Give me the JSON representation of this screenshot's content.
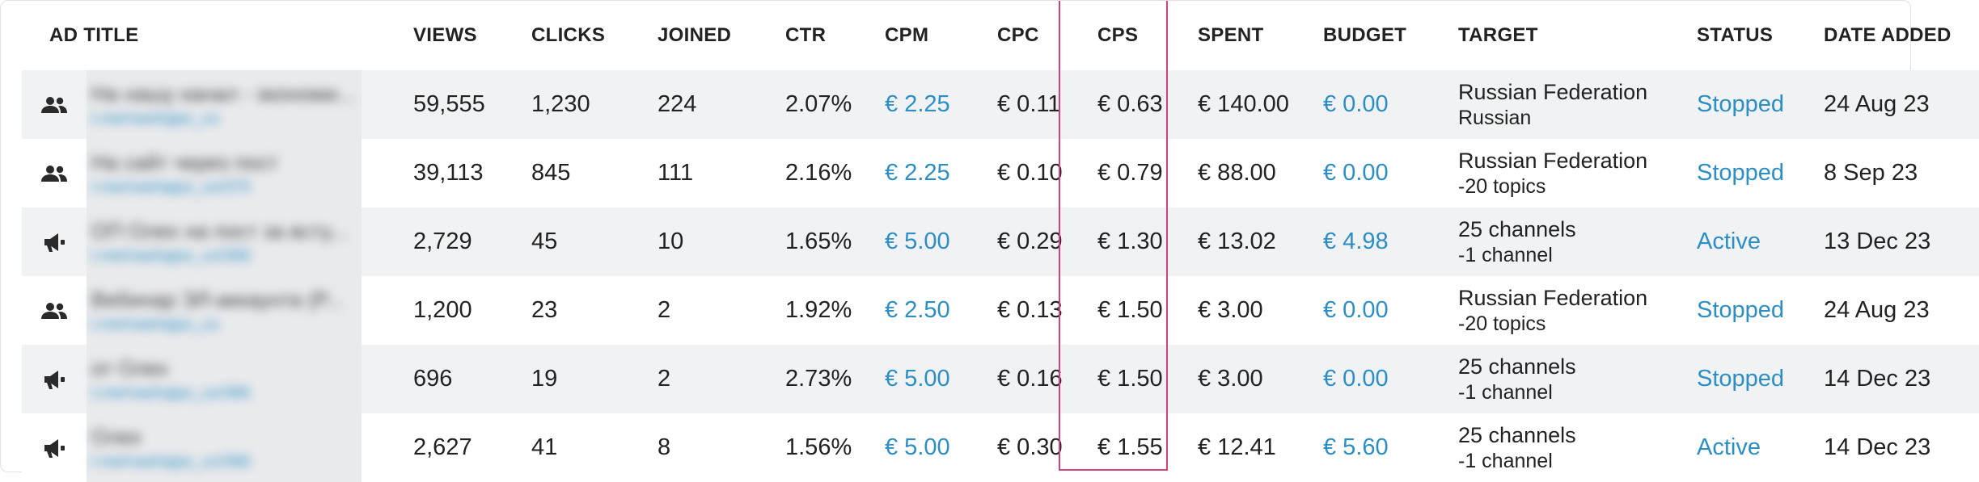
{
  "columns": {
    "ad_title": "AD TITLE",
    "views": "VIEWS",
    "clicks": "CLICKS",
    "joined": "JOINED",
    "ctr": "CTR",
    "cpm": "CPM",
    "cpc": "CPC",
    "cps": "CPS",
    "spent": "SPENT",
    "budget": "BUDGET",
    "target": "TARGET",
    "status": "STATUS",
    "date_added": "DATE ADDED"
  },
  "colors": {
    "link": "#2b8fc6",
    "highlight": "#d6407c",
    "row_alt": "#f1f2f4"
  },
  "rows": [
    {
      "icon": "users-icon",
      "title": "На нашу канал - экономи...",
      "subtitle": "t.me/nashqipo_co",
      "views": "59,555",
      "clicks": "1,230",
      "joined": "224",
      "ctr": "2.07%",
      "cpm": "€ 2.25",
      "cpc": "€ 0.11",
      "cps": "€ 0.63",
      "spent": "€ 140.00",
      "budget": "€ 0.00",
      "target1": "Russian Federation",
      "target2": "Russian",
      "status": "Stopped",
      "date": "24 Aug 23"
    },
    {
      "icon": "users-icon",
      "title": "На сайт через пост",
      "subtitle": "t.me/nashqipo_co/375",
      "views": "39,113",
      "clicks": "845",
      "joined": "111",
      "ctr": "2.16%",
      "cpm": "€ 2.25",
      "cpc": "€ 0.10",
      "cps": "€ 0.79",
      "spent": "€ 88.00",
      "budget": "€ 0.00",
      "target1": "Russian Federation",
      "target2": "-20 topics",
      "status": "Stopped",
      "date": "8 Sep 23"
    },
    {
      "icon": "megaphone-icon",
      "title": "ОП Олех на пост за всту...",
      "subtitle": "t.me/nashqipo_co/386",
      "views": "2,729",
      "clicks": "45",
      "joined": "10",
      "ctr": "1.65%",
      "cpm": "€ 5.00",
      "cpc": "€ 0.29",
      "cps": "€ 1.30",
      "spent": "€ 13.02",
      "budget": "€ 4.98",
      "target1": "25 channels",
      "target2": "-1 channel",
      "status": "Active",
      "date": "13 Dec 23"
    },
    {
      "icon": "users-icon",
      "title": "Вебинар ЭЛ-аккаунта (Р...",
      "subtitle": "t.me/nashqipo_co",
      "views": "1,200",
      "clicks": "23",
      "joined": "2",
      "ctr": "1.92%",
      "cpm": "€ 2.50",
      "cpc": "€ 0.13",
      "cps": "€ 1.50",
      "spent": "€ 3.00",
      "budget": "€ 0.00",
      "target1": "Russian Federation",
      "target2": "-20 topics",
      "status": "Stopped",
      "date": "24 Aug 23"
    },
    {
      "icon": "megaphone-icon",
      "title": "от Олех",
      "subtitle": "t.me/nashqipo_co/386",
      "views": "696",
      "clicks": "19",
      "joined": "2",
      "ctr": "2.73%",
      "cpm": "€ 5.00",
      "cpc": "€ 0.16",
      "cps": "€ 1.50",
      "spent": "€ 3.00",
      "budget": "€ 0.00",
      "target1": "25 channels",
      "target2": "-1 channel",
      "status": "Stopped",
      "date": "14 Dec 23"
    },
    {
      "icon": "megaphone-icon",
      "title": "Олех",
      "subtitle": "t.me/nashqipo_co/386",
      "views": "2,627",
      "clicks": "41",
      "joined": "8",
      "ctr": "1.56%",
      "cpm": "€ 5.00",
      "cpc": "€ 0.30",
      "cps": "€ 1.55",
      "spent": "€ 12.41",
      "budget": "€ 5.60",
      "target1": "25 channels",
      "target2": "-1 channel",
      "status": "Active",
      "date": "14 Dec 23"
    }
  ]
}
